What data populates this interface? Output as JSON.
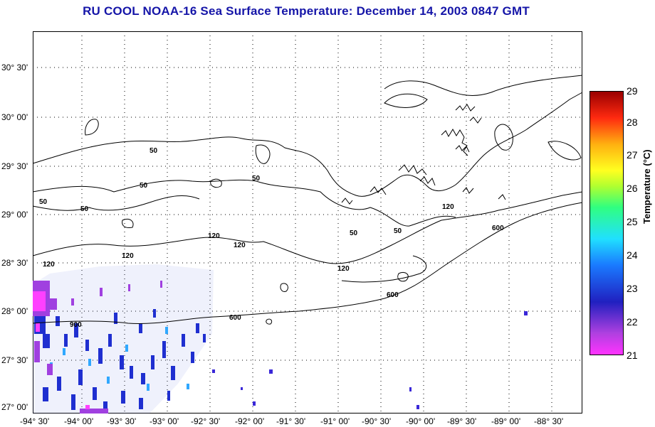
{
  "title": "RU COOL  NOAA-16  Sea Surface Temperature:  December 14, 2003 0847 GMT",
  "lat_labels": [
    "30° 30'",
    "30° 00'",
    "29° 30'",
    "29° 00'",
    "28° 30'",
    "28° 00'",
    "27° 30'",
    "27° 00'"
  ],
  "lon_labels": [
    "-94° 30'",
    "-94° 00'",
    "-93° 30'",
    "-93° 00'",
    "-92° 30'",
    "-92° 00'",
    "-91° 30'",
    "-91° 00'",
    "-90° 30'",
    "-90° 00'",
    "-89° 30'",
    "-89° 00'",
    "-88° 30'"
  ],
  "colorbar": {
    "label": "Temperature (°C)",
    "ticks": [
      "29",
      "28",
      "27",
      "26",
      "25",
      "24",
      "23",
      "22",
      "21"
    ],
    "range": [
      21,
      29
    ]
  },
  "contour_labels": [
    "50",
    "50",
    "50",
    "50",
    "50",
    "50",
    "50",
    "120",
    "120",
    "120",
    "120",
    "120",
    "120",
    "600",
    "600",
    "600",
    "900"
  ],
  "colors": {
    "title": "#1515a8",
    "grid": "#000000",
    "coast": "#000000"
  }
}
